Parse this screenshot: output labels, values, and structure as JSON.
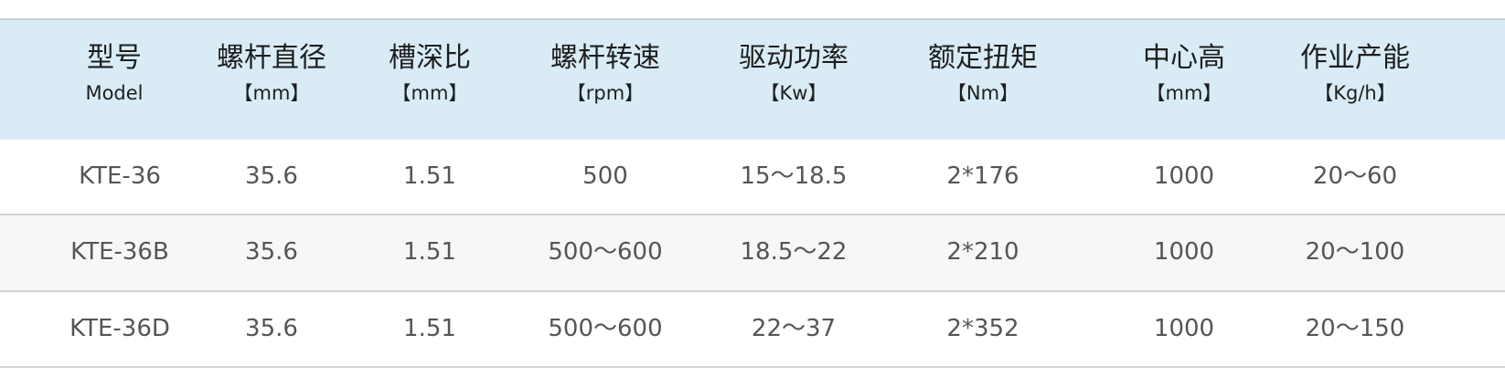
{
  "table": {
    "header_bg": "#d9ecf6",
    "columns": [
      {
        "title": "型号",
        "unit": "Model"
      },
      {
        "title": "螺杆直径",
        "unit": "【mm】"
      },
      {
        "title": "槽深比",
        "unit": "【mm】"
      },
      {
        "title": "螺杆转速",
        "unit": "【rpm】"
      },
      {
        "title": "驱动功率",
        "unit": "【Kw】"
      },
      {
        "title": "额定扭矩",
        "unit": "【Nm】"
      },
      {
        "title": "中心高",
        "unit": "【mm】"
      },
      {
        "title": "作业产能",
        "unit": "【Kg/h】"
      }
    ],
    "rows": [
      [
        "KTE-36",
        "35.6",
        "1.51",
        "500",
        "15～18.5",
        "2*176",
        "1000",
        "20～60"
      ],
      [
        "KTE-36B",
        "35.6",
        "1.51",
        "500～600",
        "18.5～22",
        "2*210",
        "1000",
        "20～100"
      ],
      [
        "KTE-36D",
        "35.6",
        "1.51",
        "500～600",
        "22～37",
        "2*352",
        "1000",
        "20～150"
      ]
    ]
  }
}
